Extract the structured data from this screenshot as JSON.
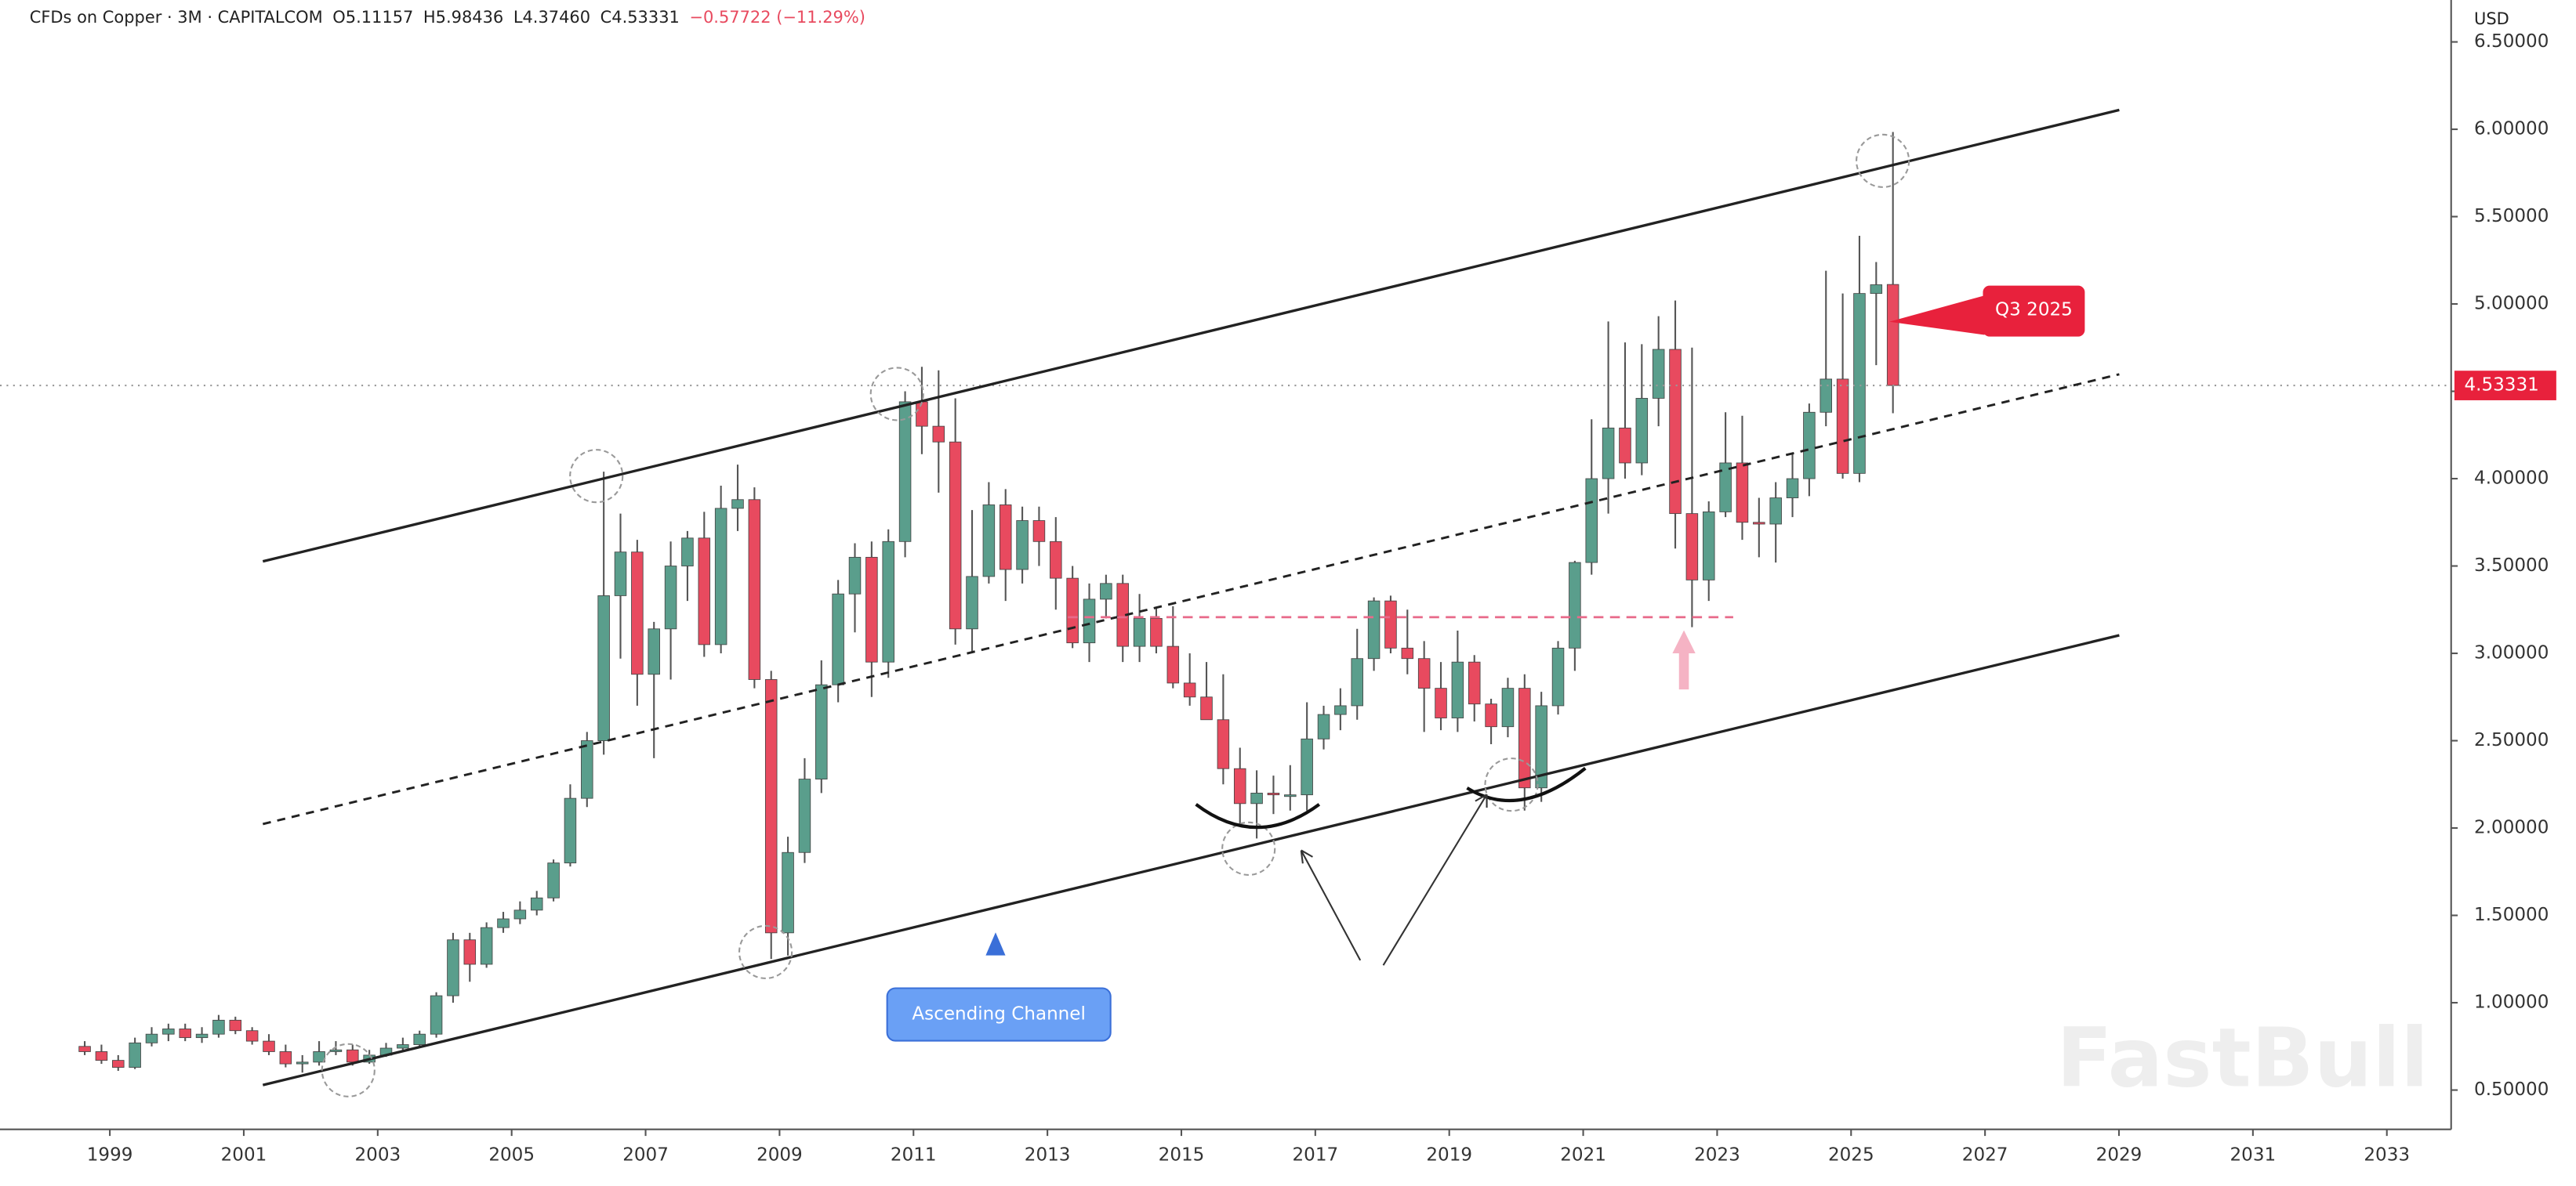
{
  "chart_data": {
    "type": "candlestick",
    "title": "CFDs on Copper · 3M · CAPITALCOM",
    "legend_values": [
      "O5.11157",
      "H5.98436",
      "L4.37460",
      "C4.53331",
      "−0.57722 (−11.29%)"
    ],
    "currency": "USD",
    "annotations": [
      "Ascending Channel",
      "Q3 2025"
    ],
    "watermark": "FastBull",
    "up_color": "#5a9e8c",
    "down_color": "#e84a5f",
    "xlim": [
      1997.36,
      2033.96
    ],
    "ylim": [
      0.275,
      6.74
    ],
    "xticks": [
      1999,
      2001,
      2003,
      2005,
      2007,
      2009,
      2011,
      2013,
      2015,
      2017,
      2019,
      2021,
      2023,
      2025,
      2027,
      2029,
      2031,
      2033
    ],
    "yticks": [
      {
        "value": 0.5,
        "label": "0.50000"
      },
      {
        "value": 1,
        "label": "1.00000"
      },
      {
        "value": 1.5,
        "label": "1.50000"
      },
      {
        "value": 2,
        "label": "2.00000"
      },
      {
        "value": 2.5,
        "label": "2.50000"
      },
      {
        "value": 3,
        "label": "3.00000"
      },
      {
        "value": 3.5,
        "label": "3.50000"
      },
      {
        "value": 4,
        "label": "4.00000"
      },
      {
        "value": 4.5,
        "label": "4.50000"
      },
      {
        "value": 5,
        "label": "5.00000"
      },
      {
        "value": 5.5,
        "label": "5.50000"
      },
      {
        "value": 6,
        "label": "6.00000"
      },
      {
        "value": 6.5,
        "label": "6.50000"
      }
    ],
    "x": [
      1998.625,
      1998.875,
      1999.125,
      1999.375,
      1999.625,
      1999.875,
      2000.125,
      2000.375,
      2000.625,
      2000.875,
      2001.125,
      2001.375,
      2001.625,
      2001.875,
      2002.125,
      2002.375,
      2002.625,
      2002.875,
      2003.125,
      2003.375,
      2003.625,
      2003.875,
      2004.125,
      2004.375,
      2004.625,
      2004.875,
      2005.125,
      2005.375,
      2005.625,
      2005.875,
      2006.125,
      2006.375,
      2006.625,
      2006.875,
      2007.125,
      2007.375,
      2007.625,
      2007.875,
      2008.125,
      2008.375,
      2008.625,
      2008.875,
      2009.125,
      2009.375,
      2009.625,
      2009.875,
      2010.125,
      2010.375,
      2010.625,
      2010.875,
      2011.125,
      2011.375,
      2011.625,
      2011.875,
      2012.125,
      2012.375,
      2012.625,
      2012.875,
      2013.125,
      2013.375,
      2013.625,
      2013.875,
      2014.125,
      2014.375,
      2014.625,
      2014.875,
      2015.125,
      2015.375,
      2015.625,
      2015.875,
      2016.125,
      2016.375,
      2016.625,
      2016.875,
      2017.125,
      2017.375,
      2017.625,
      2017.875,
      2018.125,
      2018.375,
      2018.625,
      2018.875,
      2019.125,
      2019.375,
      2019.625,
      2019.875,
      2020.125,
      2020.375,
      2020.625,
      2020.875,
      2021.125,
      2021.375,
      2021.625,
      2021.875,
      2022.125,
      2022.375,
      2022.625,
      2022.875,
      2023.125,
      2023.375,
      2023.625,
      2023.875,
      2024.125,
      2024.375,
      2024.625,
      2024.875,
      2025.125,
      2025.375,
      2025.625
    ],
    "open": [
      0.75,
      0.72,
      0.67,
      0.63,
      0.77,
      0.82,
      0.85,
      0.8,
      0.82,
      0.9,
      0.84,
      0.78,
      0.72,
      0.65,
      0.66,
      0.72,
      0.73,
      0.66,
      0.7,
      0.74,
      0.76,
      0.82,
      1.04,
      1.36,
      1.22,
      1.43,
      1.48,
      1.53,
      1.6,
      1.8,
      2.17,
      2.5,
      3.33,
      3.58,
      2.88,
      3.14,
      3.5,
      3.66,
      3.05,
      3.83,
      3.88,
      2.85,
      1.4,
      1.86,
      2.28,
      2.82,
      3.34,
      3.55,
      2.95,
      3.64,
      4.44,
      4.3,
      4.21,
      3.14,
      3.44,
      3.85,
      3.48,
      3.76,
      3.64,
      3.43,
      3.06,
      3.31,
      3.4,
      3.04,
      3.2,
      3.04,
      2.83,
      2.75,
      2.62,
      2.34,
      2.14,
      2.2,
      2.19,
      2.19,
      2.51,
      2.65,
      2.7,
      2.97,
      3.3,
      3.03,
      2.97,
      2.8,
      2.63,
      2.95,
      2.71,
      2.58,
      2.8,
      2.23,
      2.7,
      3.03,
      3.52,
      4.0,
      4.29,
      4.09,
      4.46,
      4.74,
      3.8,
      3.42,
      3.81,
      4.09,
      3.75,
      3.74,
      3.89,
      4.0,
      4.38,
      4.57,
      4.03,
      5.06,
      5.11157
    ],
    "high": [
      0.78,
      0.76,
      0.7,
      0.8,
      0.86,
      0.88,
      0.88,
      0.86,
      0.93,
      0.92,
      0.86,
      0.82,
      0.76,
      0.7,
      0.78,
      0.78,
      0.76,
      0.73,
      0.77,
      0.8,
      0.84,
      1.06,
      1.4,
      1.4,
      1.46,
      1.52,
      1.58,
      1.64,
      1.82,
      2.25,
      2.55,
      4.04,
      3.8,
      3.65,
      3.18,
      3.64,
      3.7,
      3.81,
      3.96,
      4.08,
      3.95,
      2.9,
      1.95,
      2.4,
      2.96,
      3.42,
      3.63,
      3.64,
      3.71,
      4.5,
      4.64,
      4.62,
      4.46,
      3.82,
      3.98,
      3.94,
      3.84,
      3.84,
      3.78,
      3.5,
      3.4,
      3.45,
      3.45,
      3.34,
      3.26,
      3.27,
      3.0,
      2.95,
      2.88,
      2.46,
      2.33,
      2.3,
      2.36,
      2.72,
      2.7,
      2.8,
      3.14,
      3.32,
      3.33,
      3.25,
      3.07,
      2.95,
      3.13,
      2.99,
      2.74,
      2.86,
      2.88,
      2.78,
      3.07,
      3.53,
      4.34,
      4.9,
      4.78,
      4.77,
      4.93,
      5.02,
      4.75,
      3.87,
      4.38,
      4.36,
      3.89,
      3.98,
      4.14,
      4.43,
      5.19,
      5.06,
      5.39,
      5.24,
      5.98436
    ],
    "low": [
      0.7,
      0.65,
      0.61,
      0.62,
      0.75,
      0.78,
      0.78,
      0.77,
      0.8,
      0.82,
      0.76,
      0.7,
      0.63,
      0.6,
      0.64,
      0.7,
      0.64,
      0.65,
      0.69,
      0.72,
      0.74,
      0.8,
      1.0,
      1.12,
      1.2,
      1.4,
      1.45,
      1.5,
      1.58,
      1.78,
      2.12,
      2.42,
      2.97,
      2.7,
      2.4,
      2.85,
      3.3,
      2.98,
      3.0,
      3.7,
      2.8,
      1.25,
      1.27,
      1.8,
      2.2,
      2.72,
      3.12,
      2.75,
      2.86,
      3.55,
      4.14,
      3.92,
      3.05,
      3.0,
      3.4,
      3.3,
      3.4,
      3.5,
      3.25,
      3.03,
      2.95,
      3.2,
      2.95,
      2.95,
      3.0,
      2.8,
      2.7,
      2.62,
      2.25,
      2.02,
      1.94,
      2.08,
      2.1,
      2.1,
      2.45,
      2.56,
      2.62,
      2.9,
      3.0,
      2.88,
      2.55,
      2.56,
      2.55,
      2.61,
      2.48,
      2.52,
      2.1,
      2.15,
      2.65,
      2.9,
      3.45,
      3.8,
      4.0,
      4.02,
      4.3,
      3.6,
      3.15,
      3.3,
      3.78,
      3.65,
      3.55,
      3.52,
      3.78,
      3.9,
      4.3,
      4.0,
      3.98,
      4.65,
      4.3746
    ],
    "close": [
      0.72,
      0.67,
      0.63,
      0.77,
      0.82,
      0.85,
      0.8,
      0.82,
      0.9,
      0.84,
      0.78,
      0.72,
      0.65,
      0.66,
      0.72,
      0.73,
      0.66,
      0.7,
      0.74,
      0.76,
      0.82,
      1.04,
      1.36,
      1.22,
      1.43,
      1.48,
      1.53,
      1.6,
      1.8,
      2.17,
      2.5,
      3.33,
      3.58,
      2.88,
      3.14,
      3.5,
      3.66,
      3.05,
      3.83,
      3.88,
      2.85,
      1.4,
      1.86,
      2.28,
      2.82,
      3.34,
      3.55,
      2.95,
      3.64,
      4.44,
      4.3,
      4.21,
      3.14,
      3.44,
      3.85,
      3.48,
      3.76,
      3.64,
      3.43,
      3.06,
      3.31,
      3.4,
      3.04,
      3.2,
      3.04,
      2.83,
      2.75,
      2.62,
      2.34,
      2.14,
      2.2,
      2.19,
      2.19,
      2.51,
      2.65,
      2.7,
      2.97,
      3.3,
      3.03,
      2.97,
      2.8,
      2.63,
      2.95,
      2.71,
      2.58,
      2.8,
      2.23,
      2.7,
      3.03,
      3.52,
      4.0,
      4.29,
      4.09,
      4.46,
      4.74,
      3.8,
      3.42,
      3.81,
      4.09,
      3.75,
      3.74,
      3.89,
      4.0,
      4.38,
      4.57,
      4.03,
      5.06,
      5.11,
      4.53331
    ]
  }
}
